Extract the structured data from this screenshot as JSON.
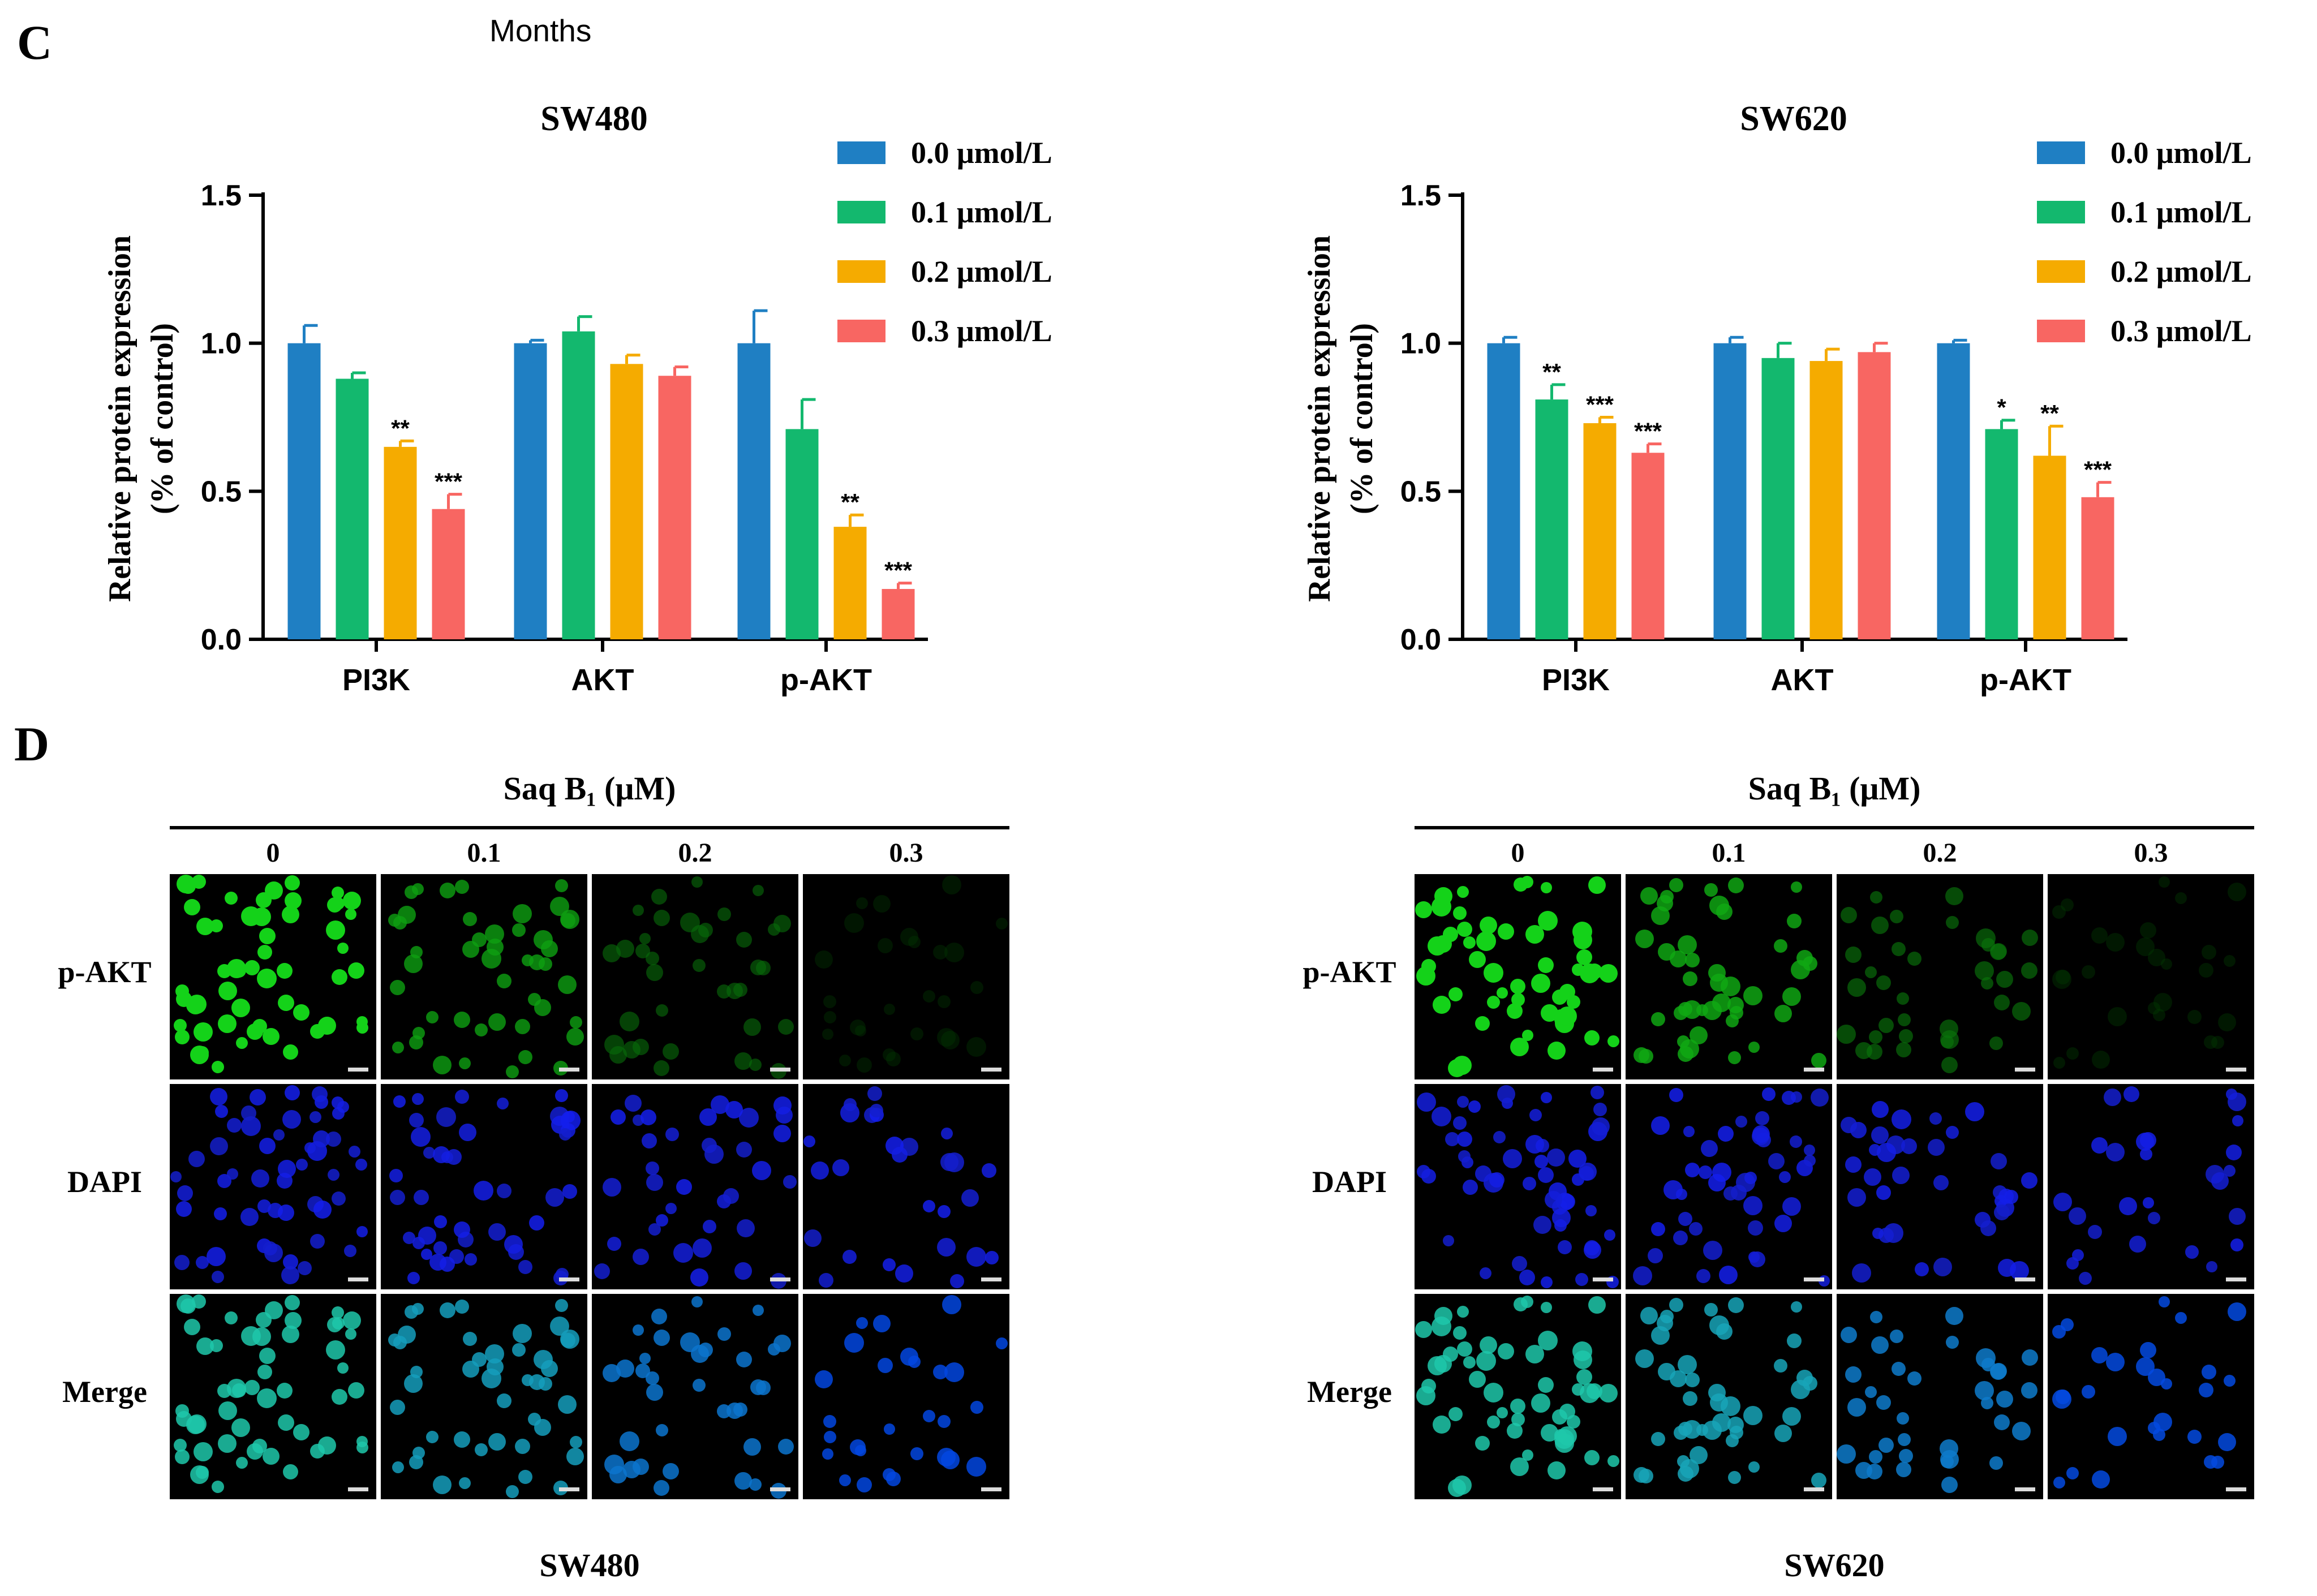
{
  "panel_c": {
    "letter": "C",
    "stray_label": "Months"
  },
  "panel_d": {
    "letter": "D"
  },
  "chart_data": [
    {
      "type": "bar",
      "title": "SW480",
      "ylabel_line1": "Relative protein expression",
      "ylabel_line2": "(% of control)",
      "ylim": [
        0,
        1.5
      ],
      "yticks": [
        "0.0",
        "0.5",
        "1.0",
        "1.5"
      ],
      "categories": [
        "PI3K",
        "AKT",
        "p-AKT"
      ],
      "series": [
        {
          "name": "0.0 μmol/L",
          "color": "#1f7fc3",
          "values": [
            1.0,
            1.0,
            1.0
          ],
          "errors": [
            0.06,
            0.01,
            0.11
          ],
          "sig": [
            "",
            "",
            ""
          ]
        },
        {
          "name": "0.1 μmol/L",
          "color": "#13b86e",
          "values": [
            0.88,
            1.04,
            0.71
          ],
          "errors": [
            0.02,
            0.05,
            0.1
          ],
          "sig": [
            "",
            "",
            ""
          ]
        },
        {
          "name": "0.2 μmol/L",
          "color": "#f5ab00",
          "values": [
            0.65,
            0.93,
            0.38
          ],
          "errors": [
            0.02,
            0.03,
            0.04
          ],
          "sig": [
            "**",
            "",
            "**"
          ]
        },
        {
          "name": "0.3 μmol/L",
          "color": "#f86662",
          "values": [
            0.44,
            0.89,
            0.17
          ],
          "errors": [
            0.05,
            0.03,
            0.02
          ],
          "sig": [
            "***",
            "",
            "***"
          ]
        }
      ]
    },
    {
      "type": "bar",
      "title": "SW620",
      "ylabel_line1": "Relative protein expression",
      "ylabel_line2": "(% of control)",
      "ylim": [
        0,
        1.5
      ],
      "yticks": [
        "0.0",
        "0.5",
        "1.0",
        "1.5"
      ],
      "categories": [
        "PI3K",
        "AKT",
        "p-AKT"
      ],
      "series": [
        {
          "name": "0.0 μmol/L",
          "color": "#1f7fc3",
          "values": [
            1.0,
            1.0,
            1.0
          ],
          "errors": [
            0.02,
            0.02,
            0.01
          ],
          "sig": [
            "",
            "",
            ""
          ]
        },
        {
          "name": "0.1 μmol/L",
          "color": "#13b86e",
          "values": [
            0.81,
            0.95,
            0.71
          ],
          "errors": [
            0.05,
            0.05,
            0.03
          ],
          "sig": [
            "**",
            "",
            "*"
          ]
        },
        {
          "name": "0.2 μmol/L",
          "color": "#f5ab00",
          "values": [
            0.73,
            0.94,
            0.62
          ],
          "errors": [
            0.02,
            0.04,
            0.1
          ],
          "sig": [
            "***",
            "",
            "**"
          ]
        },
        {
          "name": "0.3 μmol/L",
          "color": "#f86662",
          "values": [
            0.63,
            0.97,
            0.48
          ],
          "errors": [
            0.03,
            0.03,
            0.05
          ],
          "sig": [
            "***",
            "",
            "***"
          ]
        }
      ]
    }
  ],
  "microscopy": [
    {
      "cell_line": "SW480",
      "treatment_title": "Saq B₁ (μM)",
      "doses": [
        "0",
        "0.1",
        "0.2",
        "0.3"
      ],
      "rows": [
        "p-AKT",
        "DAPI",
        "Merge"
      ],
      "green_intensity": [
        1.0,
        0.7,
        0.4,
        0.08
      ]
    },
    {
      "cell_line": "SW620",
      "treatment_title": "Saq B₁ (μM)",
      "doses": [
        "0",
        "0.1",
        "0.2",
        "0.3"
      ],
      "rows": [
        "p-AKT",
        "DAPI",
        "Merge"
      ],
      "green_intensity": [
        1.0,
        0.75,
        0.45,
        0.1
      ]
    }
  ]
}
